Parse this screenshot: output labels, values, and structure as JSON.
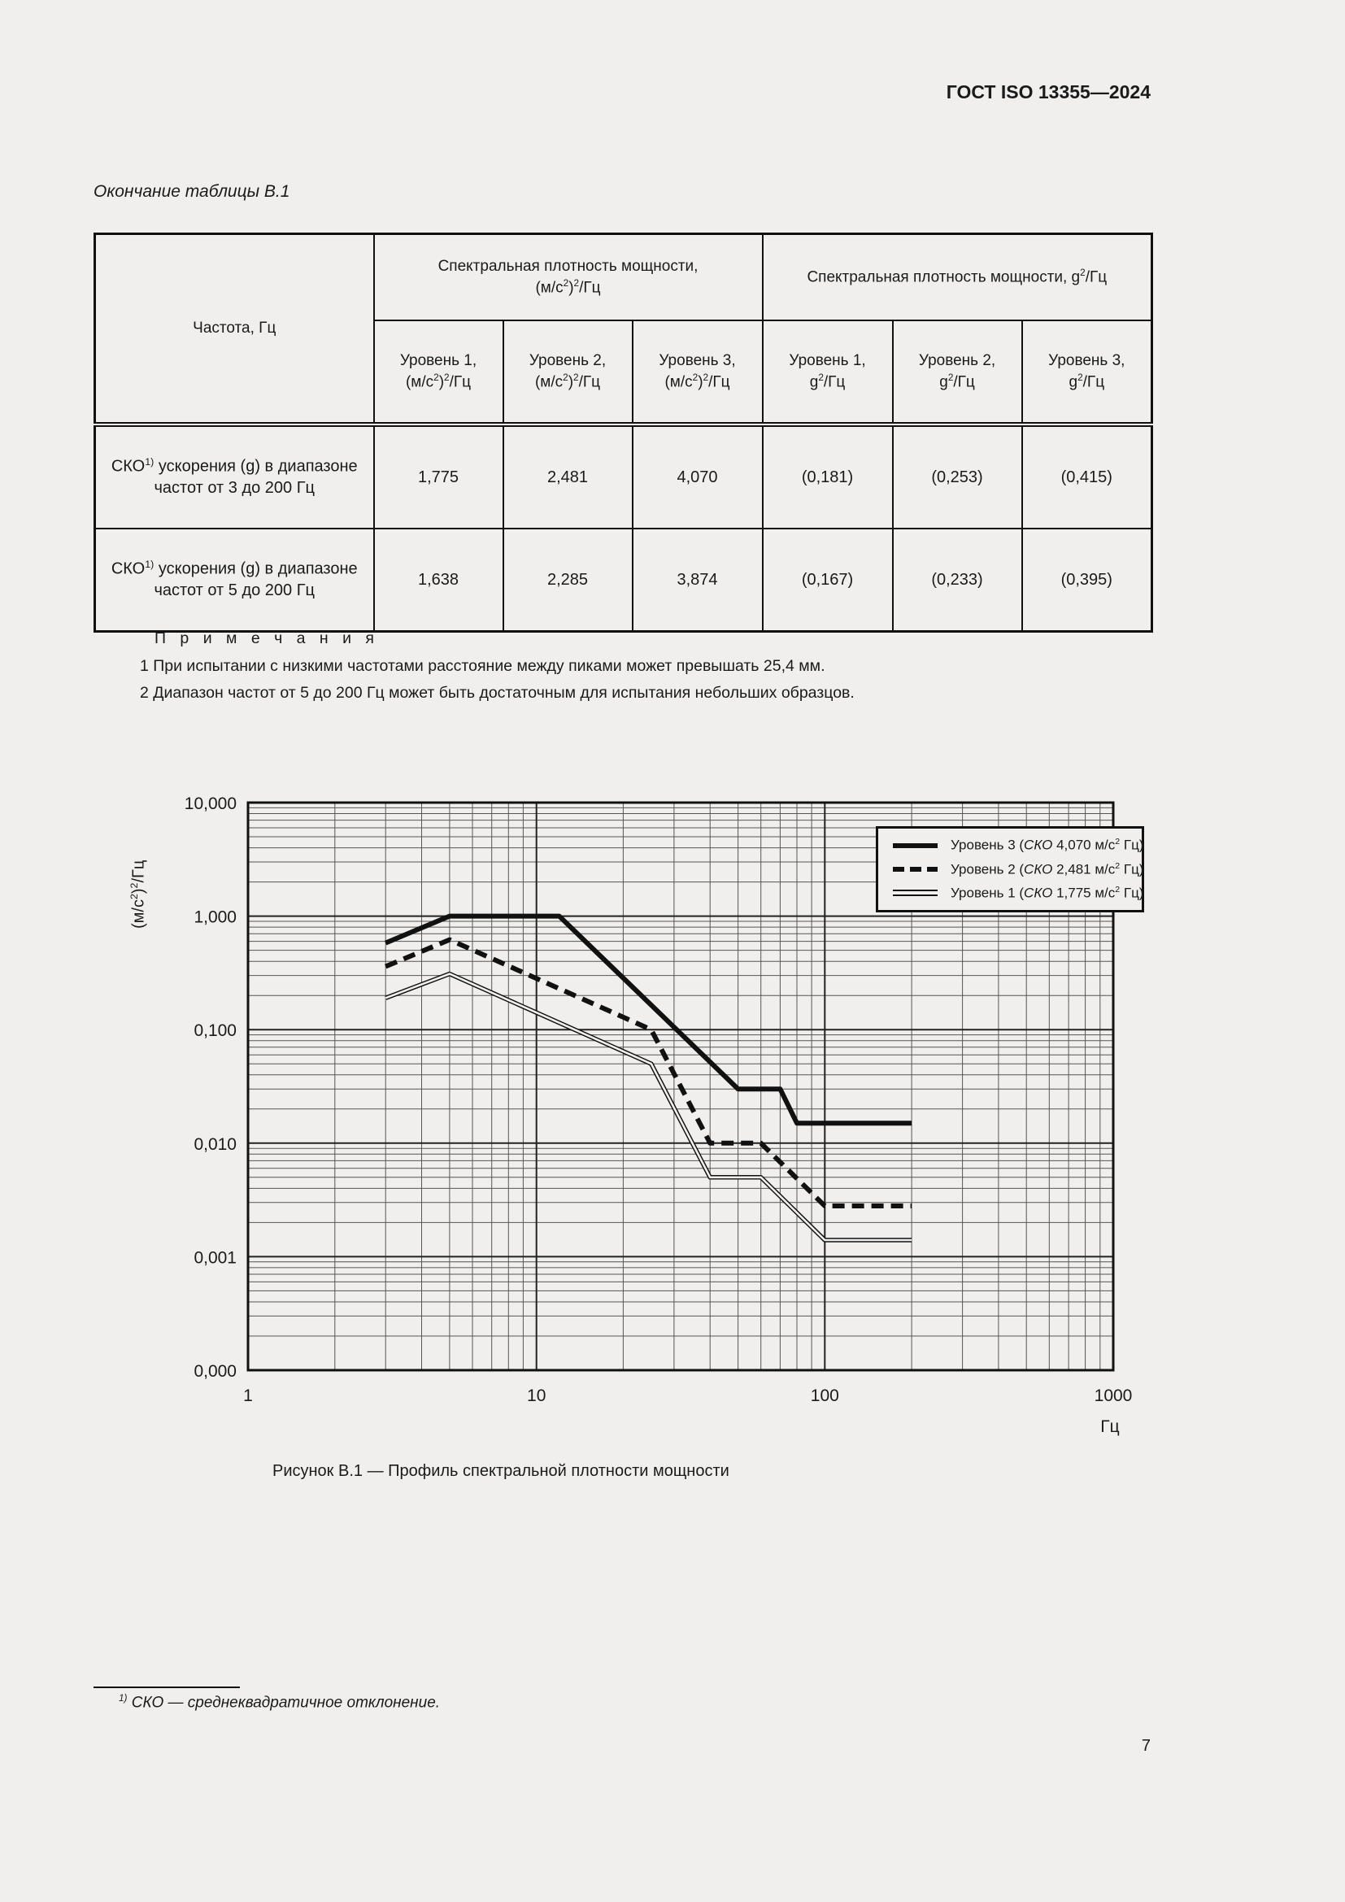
{
  "page": {
    "header": "ГОСТ ISO 13355—2024",
    "table_continuation": "Окончание таблицы В.1",
    "figure_caption": "Рисунок В.1 — Профиль спектральной плотности мощности",
    "footnote": "^{1)} СКО — среднеквадратичное отклонение.",
    "page_number": "7"
  },
  "table": {
    "col1_header": "Частота, Гц",
    "group_headers": [
      "Спектральная  плотность мощности,\n(м/с^{2})^{2}/Гц",
      "Спектральная плотность мощности, g^{2}/Гц"
    ],
    "sub_headers": [
      "Уровень 1,\n(м/с^{2})^{2}/Гц",
      "Уровень 2,\n(м/с^{2})^{2}/Гц",
      "Уровень 3,\n(м/с^{2})^{2}/Гц",
      "Уровень 1,\ng^{2}/Гц",
      "Уровень 2,\ng^{2}/Гц",
      "Уровень 3,\ng^{2}/Гц"
    ],
    "rows": [
      {
        "label": "СКО^{1)} ускорения (g) в диапазоне частот от 3 до  200  Гц",
        "values": [
          "1,775",
          "2,481",
          "4,070",
          "(0,181)",
          "(0,253)",
          "(0,415)"
        ]
      },
      {
        "label": "СКО^{1)} ускорения (g) в диапазоне частот от 5 до  200  Гц",
        "values": [
          "1,638",
          "2,285",
          "3,874",
          "(0,167)",
          "(0,233)",
          "(0,395)"
        ]
      }
    ]
  },
  "notes": {
    "title": "П р и м е ч а н и я",
    "items": [
      "1  При испытании с низкими частотами расстояние между пиками может превышать 25,4 мм.",
      "2  Диапазон частот от 5 до 200 Гц может быть достаточным для испытания небольших образцов."
    ]
  },
  "chart_data": {
    "type": "line",
    "title": "",
    "xlabel": "Гц",
    "ylabel": "(м/с^{2})^{2}/Гц",
    "x_scale": "log",
    "y_scale": "log",
    "x_range": [
      1,
      1000
    ],
    "y_range": [
      0.0001,
      10
    ],
    "x_tick_labels": [
      "1",
      "10",
      "100",
      "1000"
    ],
    "y_tick_labels": [
      "10,000",
      "1,000",
      "0,100",
      "0,010",
      "0,001",
      "0,000"
    ],
    "grid": "log major+minor, both axes",
    "legend_position": "top-right",
    "series": [
      {
        "name": "Уровень 3 (~{СКО} 4,070 м/с^{2} Гц)",
        "style": "thick-solid",
        "points": [
          [
            3,
            0.58
          ],
          [
            5,
            1.0
          ],
          [
            12,
            1.0
          ],
          [
            50,
            0.03
          ],
          [
            70,
            0.03
          ],
          [
            80,
            0.015
          ],
          [
            200,
            0.015
          ]
        ]
      },
      {
        "name": "Уровень 2 (~{СКО} 2,481 м/с^{2} Гц)",
        "style": "thick-dashed",
        "points": [
          [
            3,
            0.36
          ],
          [
            5,
            0.62
          ],
          [
            25,
            0.1
          ],
          [
            40,
            0.01
          ],
          [
            60,
            0.01
          ],
          [
            100,
            0.0028
          ],
          [
            200,
            0.0028
          ]
        ]
      },
      {
        "name": "Уровень 1 (~{СКО} 1,775 м/с^{2} Гц)",
        "style": "double-thin",
        "points": [
          [
            3,
            0.19
          ],
          [
            5,
            0.31
          ],
          [
            25,
            0.05
          ],
          [
            40,
            0.005
          ],
          [
            60,
            0.005
          ],
          [
            100,
            0.0014
          ],
          [
            200,
            0.0014
          ]
        ]
      }
    ]
  }
}
